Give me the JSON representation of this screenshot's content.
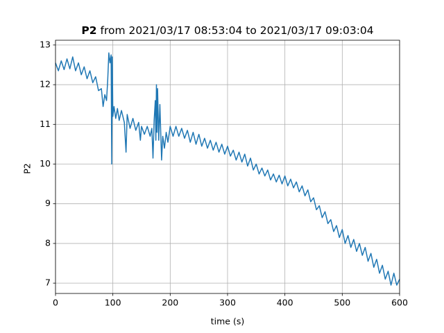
{
  "chart_data": {
    "type": "line",
    "title_parts": [
      "P2",
      "from 2021/03/17 08:53:04 to 2021/03/17 09:03:04"
    ],
    "xlabel": "time (s)",
    "ylabel": "P2",
    "xlim": [
      0,
      600
    ],
    "ylim": [
      6.74,
      13.12
    ],
    "xticks": [
      0,
      100,
      200,
      300,
      400,
      500,
      600
    ],
    "yticks": [
      7,
      8,
      9,
      10,
      11,
      12,
      13
    ],
    "grid": true,
    "x": [
      0,
      5,
      10,
      15,
      20,
      25,
      30,
      35,
      40,
      45,
      50,
      55,
      60,
      65,
      70,
      75,
      80,
      83,
      86,
      89,
      91,
      93,
      95,
      97,
      98,
      99,
      100,
      102,
      105,
      108,
      111,
      115,
      120,
      123,
      125,
      130,
      135,
      140,
      145,
      148,
      150,
      155,
      160,
      165,
      168,
      170,
      172,
      174,
      175,
      176,
      177,
      178,
      180,
      182,
      185,
      187,
      190,
      193,
      196,
      200,
      205,
      210,
      215,
      220,
      225,
      230,
      235,
      240,
      245,
      250,
      255,
      260,
      265,
      270,
      275,
      280,
      285,
      290,
      295,
      300,
      305,
      310,
      315,
      320,
      325,
      330,
      335,
      340,
      345,
      350,
      355,
      360,
      365,
      370,
      375,
      380,
      385,
      390,
      395,
      400,
      405,
      410,
      415,
      420,
      425,
      430,
      435,
      440,
      445,
      450,
      455,
      460,
      465,
      470,
      475,
      480,
      485,
      490,
      495,
      500,
      505,
      510,
      515,
      520,
      525,
      530,
      535,
      540,
      545,
      550,
      555,
      560,
      565,
      570,
      575,
      580,
      585,
      590,
      595,
      600
    ],
    "series": [
      {
        "name": "P2",
        "color": "#1f77b4",
        "values": [
          12.55,
          12.35,
          12.6,
          12.38,
          12.65,
          12.4,
          12.7,
          12.35,
          12.55,
          12.25,
          12.45,
          12.15,
          12.35,
          12.05,
          12.2,
          11.85,
          11.9,
          11.45,
          11.75,
          11.6,
          12.1,
          12.8,
          12.55,
          12.75,
          10.0,
          12.7,
          11.2,
          11.45,
          11.15,
          11.4,
          11.1,
          11.35,
          11.05,
          10.3,
          11.25,
          10.9,
          11.15,
          10.85,
          11.05,
          10.6,
          10.95,
          10.75,
          10.95,
          10.7,
          10.9,
          10.15,
          11.1,
          11.6,
          10.6,
          12.0,
          10.8,
          11.9,
          10.6,
          11.5,
          10.1,
          10.7,
          10.4,
          10.8,
          10.55,
          10.95,
          10.7,
          10.95,
          10.7,
          10.9,
          10.65,
          10.85,
          10.55,
          10.8,
          10.5,
          10.75,
          10.45,
          10.65,
          10.4,
          10.6,
          10.35,
          10.55,
          10.3,
          10.5,
          10.25,
          10.45,
          10.2,
          10.35,
          10.1,
          10.3,
          10.05,
          10.25,
          9.95,
          10.15,
          9.85,
          10.0,
          9.75,
          9.9,
          9.7,
          9.85,
          9.6,
          9.75,
          9.55,
          9.72,
          9.5,
          9.7,
          9.45,
          9.62,
          9.4,
          9.55,
          9.3,
          9.45,
          9.2,
          9.35,
          9.05,
          9.15,
          8.85,
          8.95,
          8.65,
          8.8,
          8.5,
          8.6,
          8.3,
          8.45,
          8.15,
          8.35,
          8.0,
          8.2,
          7.9,
          8.1,
          7.8,
          8.0,
          7.7,
          7.9,
          7.55,
          7.75,
          7.4,
          7.6,
          7.25,
          7.45,
          7.1,
          7.3,
          6.95,
          7.25,
          6.95,
          7.1
        ]
      }
    ]
  }
}
